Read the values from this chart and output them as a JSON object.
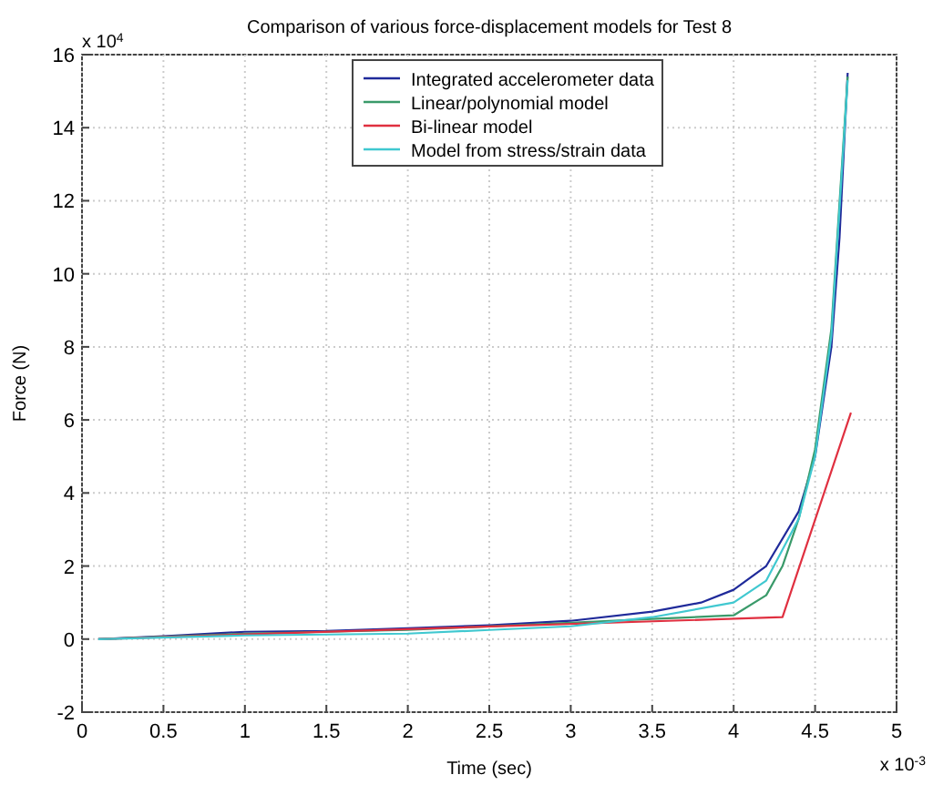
{
  "chart_data": {
    "type": "line",
    "title": "Comparison of various force-displacement models for Test 8",
    "xlabel": "Time (sec)",
    "ylabel": "Force (N)",
    "xlim": [
      0,
      5
    ],
    "xticks": [
      0,
      0.5,
      1,
      1.5,
      2,
      2.5,
      3,
      3.5,
      4,
      4.5,
      5
    ],
    "ylim": [
      -2,
      16
    ],
    "yticks": [
      -2,
      0,
      2,
      4,
      6,
      8,
      10,
      12,
      14,
      16
    ],
    "grid": true,
    "legend": "top",
    "annotations": [
      "x 10$^{4}$",
      "x 10$^{-3}$"
    ],
    "series": [
      {
        "name": "Integrated accelerometer data",
        "color": "#1f2a9a",
        "x": [
          0.1,
          0.5,
          1,
          1.5,
          2,
          2.5,
          3,
          3.5,
          3.8,
          4,
          4.2,
          4.4,
          4.5,
          4.6,
          4.65,
          4.7
        ],
        "values": [
          0,
          0.08,
          0.2,
          0.22,
          0.3,
          0.38,
          0.5,
          0.75,
          1.0,
          1.35,
          2.0,
          3.5,
          5.0,
          8.0,
          11,
          15.5
        ]
      },
      {
        "name": "Linear/polynomial model",
        "color": "#3a9a6a",
        "x": [
          0.1,
          1,
          2,
          3,
          3.5,
          4,
          4.2,
          4.3,
          4.4,
          4.5,
          4.6,
          4.7
        ],
        "values": [
          0,
          0.15,
          0.25,
          0.45,
          0.55,
          0.65,
          1.2,
          2.0,
          3.3,
          5.2,
          8.5,
          15.4
        ]
      },
      {
        "name": "Bi-linear model",
        "color": "#e03040",
        "x": [
          0.1,
          4.3,
          4.72
        ],
        "values": [
          0,
          0.6,
          6.2
        ]
      },
      {
        "name": "Model from stress/strain data",
        "color": "#40c8d0",
        "x": [
          0.1,
          1,
          2,
          2.5,
          3,
          3.5,
          4,
          4.2,
          4.4,
          4.5,
          4.6,
          4.7
        ],
        "values": [
          0,
          0.1,
          0.15,
          0.25,
          0.35,
          0.6,
          1.0,
          1.6,
          3.3,
          5.0,
          8.3,
          15.3
        ]
      }
    ]
  }
}
